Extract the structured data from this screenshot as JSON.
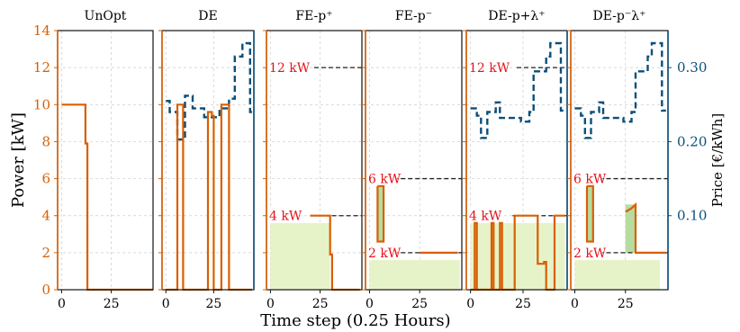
{
  "colors": {
    "power": "#d95f02",
    "price": "#0b4f7a",
    "annotation": "#e3121a",
    "fill": "#e6f3c8",
    "fill_edge": "#b7dca0",
    "grid": "#cccccc",
    "threshold": "#222222"
  },
  "chart_data": {
    "type": "line",
    "xlabel": "Time step (0.25 Hours)",
    "ylabel_left": "Power [kW]",
    "ylabel_right": "Price [€/kWh]",
    "xticks": [
      0,
      25
    ],
    "yticks_left": [
      0,
      2,
      4,
      6,
      8,
      10,
      12,
      14
    ],
    "ylim_left": [
      0,
      14
    ],
    "yticks_right": [
      "0.10",
      "0.20",
      "0.30"
    ],
    "ylim_right": [
      0.0,
      0.35
    ],
    "xlim": [
      -2,
      46
    ],
    "grid": true,
    "panels": [
      {
        "title": "UnOpt",
        "power": [
          [
            0,
            10
          ],
          [
            12,
            10
          ],
          [
            12,
            7.9
          ],
          [
            13,
            7.9
          ],
          [
            13,
            0
          ],
          [
            46,
            0
          ]
        ],
        "price": [],
        "thresholds": [],
        "fills": []
      },
      {
        "title": "DE",
        "power": [
          [
            0,
            0
          ],
          [
            6,
            0
          ],
          [
            6,
            10
          ],
          [
            9,
            10
          ],
          [
            9,
            0
          ],
          [
            22,
            0
          ],
          [
            22,
            9.6
          ],
          [
            24,
            9.6
          ],
          [
            24,
            9.4
          ],
          [
            25,
            9.4
          ],
          [
            25,
            0
          ],
          [
            29,
            0
          ],
          [
            29,
            10
          ],
          [
            33,
            10
          ],
          [
            33,
            0
          ],
          [
            45,
            0
          ]
        ],
        "price": [
          [
            0,
            0.255
          ],
          [
            2,
            0.255
          ],
          [
            2,
            0.24
          ],
          [
            6,
            0.24
          ],
          [
            6,
            0.203
          ],
          [
            10,
            0.203
          ],
          [
            10,
            0.262
          ],
          [
            14,
            0.262
          ],
          [
            14,
            0.245
          ],
          [
            20,
            0.245
          ],
          [
            20,
            0.233
          ],
          [
            28,
            0.233
          ],
          [
            28,
            0.245
          ],
          [
            33,
            0.245
          ],
          [
            33,
            0.258
          ],
          [
            36,
            0.258
          ],
          [
            36,
            0.315
          ],
          [
            40,
            0.315
          ],
          [
            40,
            0.333
          ],
          [
            44,
            0.333
          ],
          [
            44,
            0.24
          ],
          [
            45,
            0.24
          ]
        ],
        "thresholds": [],
        "fills": []
      },
      {
        "title": "FE-p⁺",
        "power": [
          [
            20,
            4
          ],
          [
            30,
            4
          ],
          [
            30,
            1.9
          ],
          [
            31,
            1.9
          ],
          [
            31,
            0
          ],
          [
            45,
            0
          ]
        ],
        "price": [],
        "thresholds": [
          {
            "label": "12 kW",
            "value": 12,
            "x_start": 22
          },
          {
            "label": "4 kW",
            "value": 4,
            "x_start": 20
          }
        ],
        "fills": [
          {
            "x0": 0,
            "x1": 30,
            "y": 3.6
          }
        ]
      },
      {
        "title": "FE-p⁻",
        "power": [
          [
            4,
            5.6
          ],
          [
            7,
            5.6
          ],
          [
            7,
            2.6
          ],
          [
            4,
            2.6
          ],
          [
            4,
            5.6
          ]
        ],
        "power2": [
          [
            25,
            2
          ],
          [
            44,
            2
          ]
        ],
        "price": [],
        "thresholds": [
          {
            "label": "6 kW",
            "value": 6,
            "x_start": 12
          },
          {
            "label": "2 kW",
            "value": 2,
            "x_start": 12
          }
        ],
        "fills": [
          {
            "x0": 0,
            "x1": 45,
            "y": 1.6
          },
          {
            "x0": 4,
            "x1": 7,
            "y": 5.6,
            "y0": 2.6
          }
        ]
      },
      {
        "title": "DE-p+λ⁺",
        "power": [
          [
            0,
            0
          ],
          [
            2,
            0
          ],
          [
            2,
            3.6
          ],
          [
            3,
            3.6
          ],
          [
            3,
            0
          ],
          [
            10,
            0
          ],
          [
            10,
            3.6
          ],
          [
            11,
            3.6
          ],
          [
            11,
            0
          ],
          [
            14,
            0
          ],
          [
            14,
            3.6
          ],
          [
            15,
            3.6
          ],
          [
            15,
            0
          ],
          [
            21,
            0
          ],
          [
            21,
            4
          ],
          [
            32,
            4
          ],
          [
            32,
            1.4
          ],
          [
            35,
            1.4
          ],
          [
            35,
            1.5
          ],
          [
            36,
            1.5
          ],
          [
            36,
            0
          ],
          [
            40,
            0
          ],
          [
            40,
            4
          ],
          [
            45,
            4
          ]
        ],
        "price": [
          [
            0,
            0.245
          ],
          [
            3,
            0.245
          ],
          [
            3,
            0.235
          ],
          [
            5,
            0.235
          ],
          [
            5,
            0.205
          ],
          [
            8,
            0.205
          ],
          [
            8,
            0.24
          ],
          [
            12,
            0.24
          ],
          [
            12,
            0.253
          ],
          [
            14,
            0.253
          ],
          [
            14,
            0.232
          ],
          [
            24,
            0.232
          ],
          [
            24,
            0.227
          ],
          [
            28,
            0.227
          ],
          [
            28,
            0.24
          ],
          [
            30,
            0.24
          ],
          [
            30,
            0.295
          ],
          [
            36,
            0.295
          ],
          [
            36,
            0.315
          ],
          [
            38,
            0.315
          ],
          [
            38,
            0.333
          ],
          [
            43,
            0.333
          ],
          [
            43,
            0.242
          ],
          [
            45,
            0.242
          ]
        ],
        "thresholds": [
          {
            "label": "12 kW",
            "value": 12,
            "x_start": 22
          },
          {
            "label": "4 kW",
            "value": 4,
            "x_start": 20
          }
        ],
        "fills": [
          {
            "x0": 0,
            "x1": 45,
            "y": 3.6
          }
        ]
      },
      {
        "title": "DE-p⁻λ⁺",
        "power": [
          [
            6,
            5.6
          ],
          [
            9,
            5.6
          ],
          [
            9,
            2.6
          ],
          [
            6,
            2.6
          ],
          [
            6,
            5.6
          ]
        ],
        "power2": [
          [
            25,
            4.2
          ],
          [
            28,
            4.4
          ],
          [
            30,
            4.6
          ],
          [
            30,
            2
          ],
          [
            45,
            2
          ]
        ],
        "price": [
          [
            0,
            0.245
          ],
          [
            3,
            0.245
          ],
          [
            3,
            0.235
          ],
          [
            5,
            0.235
          ],
          [
            5,
            0.205
          ],
          [
            8,
            0.205
          ],
          [
            8,
            0.24
          ],
          [
            12,
            0.24
          ],
          [
            12,
            0.253
          ],
          [
            14,
            0.253
          ],
          [
            14,
            0.232
          ],
          [
            24,
            0.232
          ],
          [
            24,
            0.227
          ],
          [
            28,
            0.227
          ],
          [
            28,
            0.24
          ],
          [
            30,
            0.24
          ],
          [
            30,
            0.295
          ],
          [
            36,
            0.295
          ],
          [
            36,
            0.315
          ],
          [
            38,
            0.315
          ],
          [
            38,
            0.333
          ],
          [
            43,
            0.333
          ],
          [
            43,
            0.242
          ],
          [
            45,
            0.242
          ]
        ],
        "thresholds": [
          {
            "label": "6 kW",
            "value": 6,
            "x_start": 12
          },
          {
            "label": "2 kW",
            "value": 2,
            "x_start": 12
          }
        ],
        "fills": [
          {
            "x0": 0,
            "x1": 42,
            "y": 1.6
          },
          {
            "x0": 6,
            "x1": 9,
            "y": 5.6,
            "y0": 2.6
          },
          {
            "x0": 25,
            "x1": 30,
            "y": 4.6,
            "y0": 2
          }
        ]
      }
    ]
  }
}
